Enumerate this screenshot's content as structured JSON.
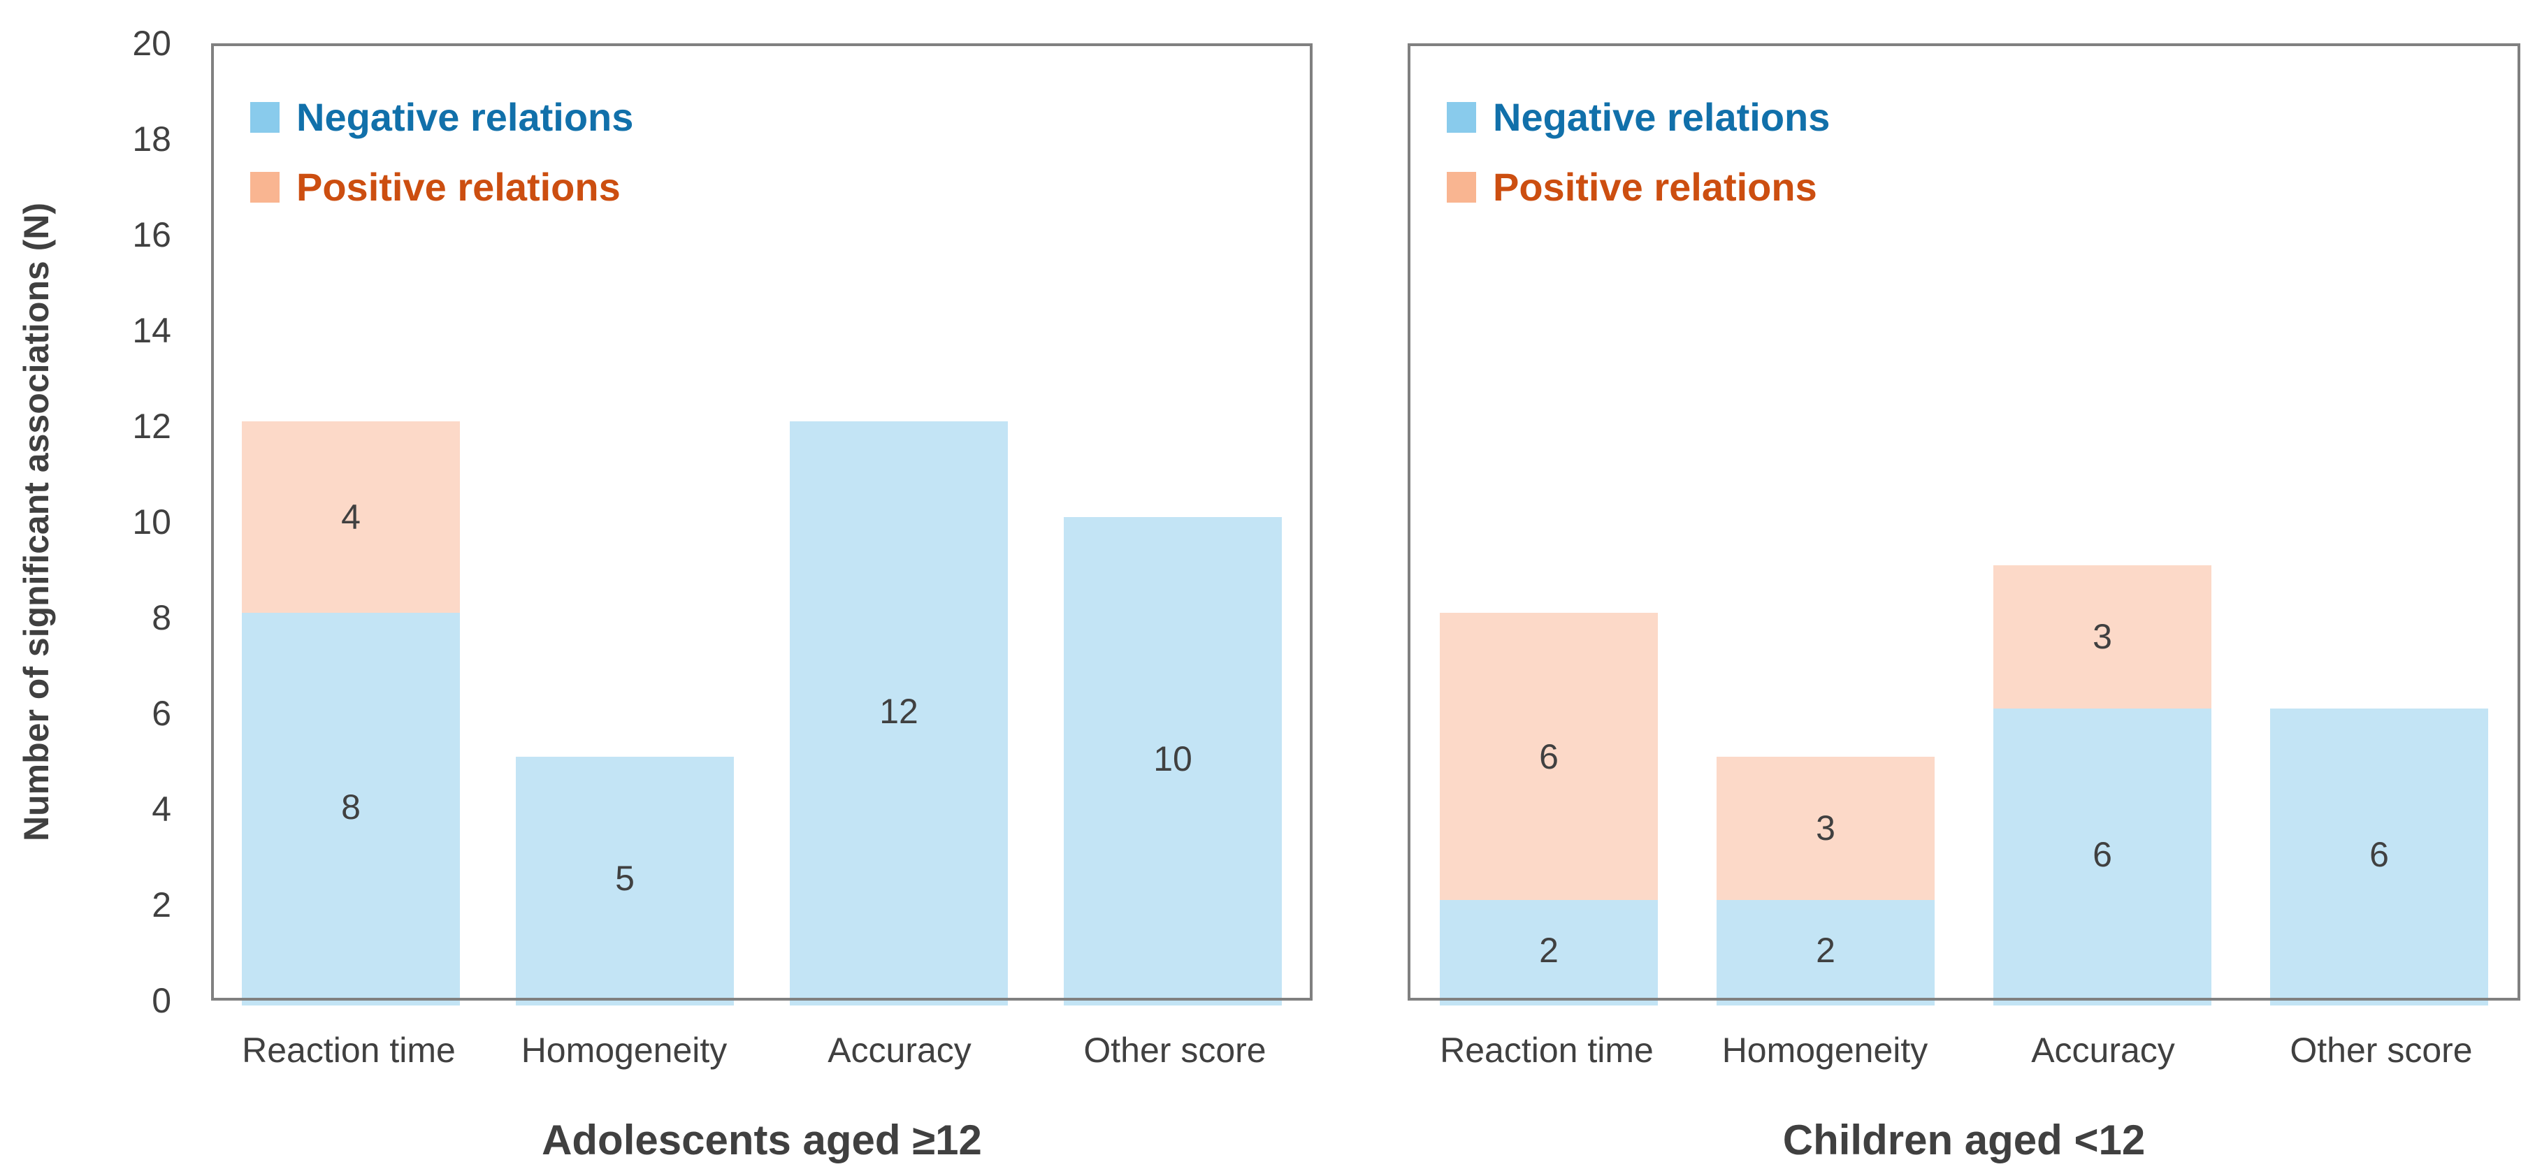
{
  "figure": {
    "y_axis_label": "Number of significant associations (N)",
    "legend": [
      {
        "label": "Negative relations",
        "swatch_color": "#89CBEC",
        "text_color": "#1170AA"
      },
      {
        "label": "Positive relations",
        "swatch_color": "#F9B591",
        "text_color": "#CC4E10"
      }
    ],
    "colors": {
      "axis_border": "#808080",
      "text": "#404040",
      "bar_negative_fill": "#C3E4F5",
      "bar_positive_fill": "#FCD9C8",
      "background": "#FFFFFF"
    }
  },
  "chart_data": [
    {
      "type": "bar",
      "stacked": true,
      "title": "Adolescents aged ≥12",
      "categories": [
        "Reaction time",
        "Homogeneity",
        "Accuracy",
        "Other score"
      ],
      "series": [
        {
          "name": "Negative relations",
          "color": "#C3E4F5",
          "values": [
            8,
            5,
            12,
            10
          ]
        },
        {
          "name": "Positive relations",
          "color": "#FCD9C8",
          "values": [
            4,
            0,
            0,
            0
          ]
        }
      ],
      "data_labels": true,
      "ylim": [
        0,
        20
      ],
      "yticks": [
        0,
        2,
        4,
        6,
        8,
        10,
        12,
        14,
        16,
        18,
        20
      ],
      "legend_position": "top-left",
      "grid": false
    },
    {
      "type": "bar",
      "stacked": true,
      "title": "Children aged <12",
      "categories": [
        "Reaction time",
        "Homogeneity",
        "Accuracy",
        "Other score"
      ],
      "series": [
        {
          "name": "Negative relations",
          "color": "#C3E4F5",
          "values": [
            2,
            2,
            6,
            6
          ]
        },
        {
          "name": "Positive relations",
          "color": "#FCD9C8",
          "values": [
            6,
            3,
            3,
            0
          ]
        }
      ],
      "data_labels": true,
      "ylim": [
        0,
        20
      ],
      "yticks": [],
      "legend_position": "top-left",
      "grid": false
    }
  ]
}
